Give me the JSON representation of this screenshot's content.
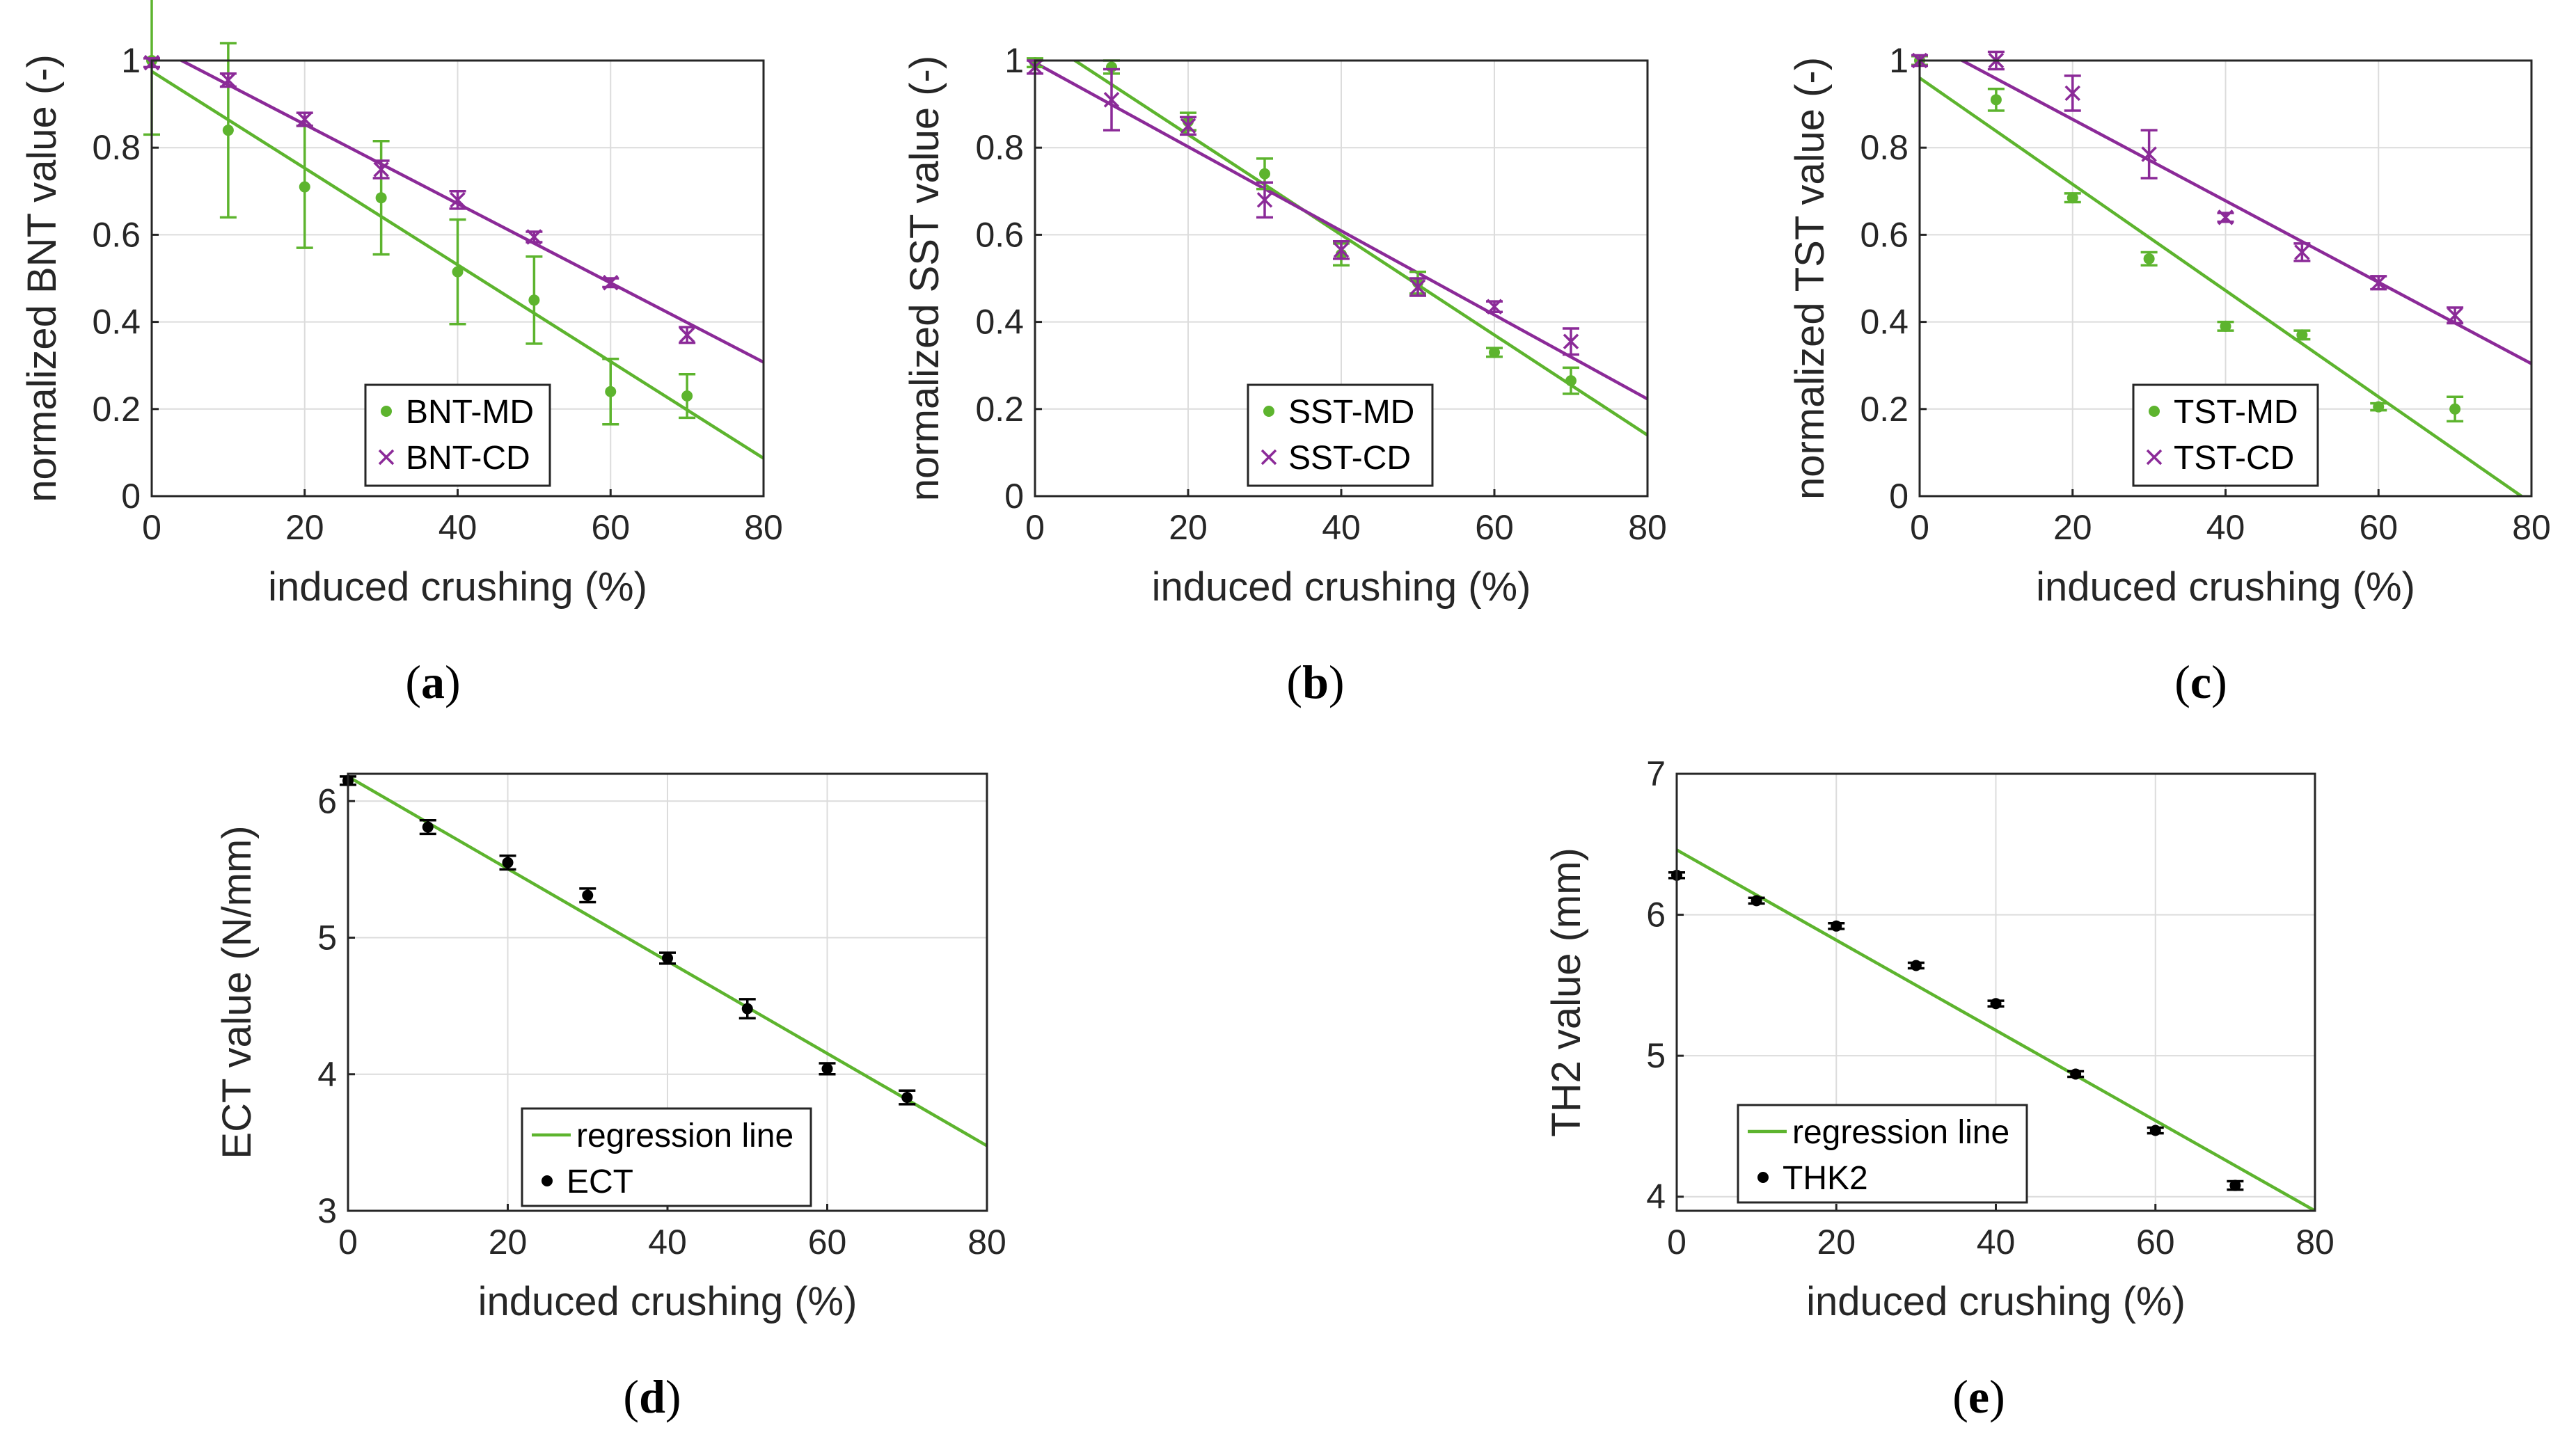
{
  "colors": {
    "green": "#5DB42E",
    "purple": "#8B2A98",
    "black": "#000000",
    "grid": "#DCDCDC",
    "axis": "#262626"
  },
  "chart_data": [
    {
      "panel": "a",
      "type": "scatter",
      "xlabel": "induced crushing (%)",
      "ylabel": "normalized BNT value (-)",
      "xlim": [
        0,
        80
      ],
      "ylim": [
        0,
        1
      ],
      "xticks": [
        0,
        20,
        40,
        60,
        80
      ],
      "yticks": [
        0,
        0.2,
        0.4,
        0.6,
        0.8,
        1
      ],
      "grid": true,
      "legend_position": "bottom-center",
      "series": [
        {
          "name": "BNT-MD",
          "marker": "dot",
          "color": "#5DB42E",
          "x": [
            0,
            10,
            20,
            30,
            40,
            50,
            60,
            70
          ],
          "y": [
            1.0,
            0.84,
            0.71,
            0.685,
            0.515,
            0.45,
            0.24,
            0.23
          ],
          "err": [
            0.17,
            0.2,
            0.14,
            0.13,
            0.12,
            0.1,
            0.075,
            0.05
          ],
          "fit": [
            0.975,
            0.0111
          ]
        },
        {
          "name": "BNT-CD",
          "marker": "x",
          "color": "#8B2A98",
          "x": [
            0,
            10,
            20,
            30,
            40,
            50,
            60,
            70
          ],
          "y": [
            0.995,
            0.955,
            0.865,
            0.75,
            0.68,
            0.595,
            0.49,
            0.37
          ],
          "err": [
            0.01,
            0.015,
            0.015,
            0.02,
            0.02,
            0.012,
            0.01,
            0.018
          ],
          "fit": [
            1.0355,
            0.0091
          ]
        }
      ]
    },
    {
      "panel": "b",
      "type": "scatter",
      "xlabel": "induced crushing (%)",
      "ylabel": "normalized SST value (-)",
      "xlim": [
        0,
        80
      ],
      "ylim": [
        0,
        1
      ],
      "xticks": [
        0,
        20,
        40,
        60,
        80
      ],
      "yticks": [
        0,
        0.2,
        0.4,
        0.6,
        0.8,
        1
      ],
      "grid": true,
      "legend_position": "bottom-center",
      "series": [
        {
          "name": "SST-MD",
          "marker": "dot",
          "color": "#5DB42E",
          "x": [
            0,
            10,
            20,
            30,
            40,
            50,
            60,
            70
          ],
          "y": [
            0.995,
            0.985,
            0.86,
            0.74,
            0.555,
            0.49,
            0.33,
            0.265
          ],
          "err": [
            0.01,
            0.015,
            0.02,
            0.035,
            0.025,
            0.025,
            0.01,
            0.03
          ],
          "fit": [
            1.06,
            0.0115
          ]
        },
        {
          "name": "SST-CD",
          "marker": "x",
          "color": "#8B2A98",
          "x": [
            0,
            10,
            20,
            30,
            40,
            50,
            60,
            70
          ],
          "y": [
            0.985,
            0.91,
            0.85,
            0.68,
            0.565,
            0.48,
            0.435,
            0.355
          ],
          "err": [
            0.015,
            0.07,
            0.02,
            0.04,
            0.02,
            0.02,
            0.012,
            0.03
          ],
          "fit": [
            0.995,
            0.00965
          ]
        }
      ]
    },
    {
      "panel": "c",
      "type": "scatter",
      "xlabel": "induced crushing (%)",
      "ylabel": "normalized TST value (-)",
      "xlim": [
        0,
        80
      ],
      "ylim": [
        0,
        1
      ],
      "xticks": [
        0,
        20,
        40,
        60,
        80
      ],
      "yticks": [
        0,
        0.2,
        0.4,
        0.6,
        0.8,
        1
      ],
      "grid": true,
      "legend_position": "bottom-center",
      "series": [
        {
          "name": "TST-MD",
          "marker": "dot",
          "color": "#5DB42E",
          "x": [
            0,
            10,
            20,
            30,
            40,
            50,
            60,
            70
          ],
          "y": [
            1.0,
            0.91,
            0.685,
            0.545,
            0.39,
            0.37,
            0.205,
            0.2
          ],
          "err": [
            0.01,
            0.025,
            0.01,
            0.015,
            0.01,
            0.01,
            0.008,
            0.028
          ],
          "fit": [
            0.96,
            0.0122
          ]
        },
        {
          "name": "TST-CD",
          "marker": "x",
          "color": "#8B2A98",
          "x": [
            0,
            10,
            20,
            30,
            40,
            50,
            60,
            70
          ],
          "y": [
            1.0,
            1.0,
            0.925,
            0.785,
            0.64,
            0.56,
            0.49,
            0.415
          ],
          "err": [
            0.012,
            0.02,
            0.04,
            0.055,
            0.01,
            0.02,
            0.015,
            0.018
          ],
          "fit": [
            1.052,
            0.00935
          ]
        }
      ]
    },
    {
      "panel": "d",
      "type": "scatter",
      "xlabel": "induced crushing (%)",
      "ylabel": "ECT value (N/mm)",
      "xlim": [
        0,
        80
      ],
      "ylim": [
        3,
        6.2
      ],
      "xticks": [
        0,
        20,
        40,
        60,
        80
      ],
      "yticks": [
        3,
        4,
        5,
        6
      ],
      "grid": true,
      "legend_position": "bottom-left",
      "series": [
        {
          "name": "regression line",
          "type": "line",
          "color": "#5DB42E",
          "fit": [
            6.18,
            0.0338
          ]
        },
        {
          "name": "ECT",
          "marker": "dot",
          "color": "#000000",
          "x": [
            0,
            10,
            20,
            30,
            40,
            50,
            60,
            70
          ],
          "y": [
            6.15,
            5.81,
            5.55,
            5.31,
            4.85,
            4.48,
            4.04,
            3.83
          ],
          "err": [
            0.03,
            0.05,
            0.05,
            0.05,
            0.04,
            0.07,
            0.04,
            0.05
          ]
        }
      ]
    },
    {
      "panel": "e",
      "type": "scatter",
      "xlabel": "induced crushing (%)",
      "ylabel": "TH2 value (mm)",
      "xlim": [
        0,
        80
      ],
      "ylim": [
        3.9,
        7
      ],
      "xticks": [
        0,
        20,
        40,
        60,
        80
      ],
      "yticks": [
        4,
        5,
        6,
        7
      ],
      "grid": true,
      "legend_position": "bottom-left",
      "series": [
        {
          "name": "regression line",
          "type": "line",
          "color": "#5DB42E",
          "fit": [
            6.46,
            0.032
          ]
        },
        {
          "name": "THK2",
          "marker": "dot",
          "color": "#000000",
          "x": [
            0,
            10,
            20,
            30,
            40,
            50,
            60,
            70
          ],
          "y": [
            6.28,
            6.1,
            5.92,
            5.64,
            5.37,
            4.87,
            4.47,
            4.08
          ],
          "err": [
            0.02,
            0.02,
            0.02,
            0.02,
            0.02,
            0.02,
            0.02,
            0.03
          ]
        }
      ]
    }
  ],
  "panel_labels": [
    "a",
    "b",
    "c",
    "d",
    "e"
  ]
}
